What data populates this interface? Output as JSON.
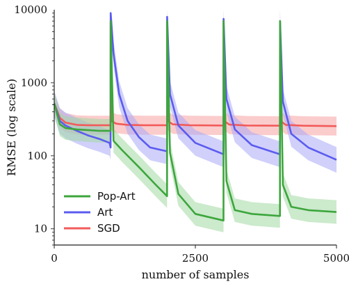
{
  "chart_data": {
    "type": "line",
    "xlabel": "number of samples",
    "ylabel": "RMSE (log scale)",
    "xlim": [
      0,
      5000
    ],
    "ylim": [
      6,
      10000
    ],
    "yscale": "log",
    "grid": false,
    "legend_position": "bottom-left",
    "x_ticks": [
      {
        "value": 0,
        "label": "0"
      },
      {
        "value": 2500,
        "label": "2500"
      },
      {
        "value": 5000,
        "label": "5000"
      }
    ],
    "y_ticks": [
      {
        "value": 10,
        "label": "10"
      },
      {
        "value": 100,
        "label": "100"
      },
      {
        "value": 1000,
        "label": "1000"
      },
      {
        "value": 10000,
        "label": "10000"
      }
    ],
    "series": [
      {
        "name": "SGD",
        "color": "#f25a5a",
        "band_color": "#f7a3a3",
        "x": [
          0,
          100,
          200,
          400,
          600,
          800,
          999,
          1000,
          1010,
          1100,
          1300,
          1600,
          1999,
          2000,
          2010,
          2100,
          2400,
          2999,
          3000,
          3010,
          3100,
          3400,
          3999,
          4000,
          4010,
          4100,
          4400,
          5000
        ],
        "y": [
          520,
          330,
          285,
          265,
          262,
          262,
          262,
          7000,
          300,
          275,
          265,
          262,
          262,
          7000,
          300,
          270,
          262,
          260,
          7000,
          300,
          268,
          260,
          258,
          7000,
          300,
          265,
          258,
          255
        ],
        "band_ratio": 1.35
      },
      {
        "name": "Art",
        "color": "#5b5bf0",
        "band_color": "#a9a9f7",
        "x": [
          0,
          100,
          200,
          400,
          600,
          800,
          980,
          999,
          1000,
          1050,
          1150,
          1300,
          1500,
          1700,
          1999,
          2000,
          2050,
          2200,
          2500,
          2999,
          3000,
          3050,
          3200,
          3500,
          3999,
          4000,
          4050,
          4200,
          4500,
          5000
        ],
        "y": [
          520,
          300,
          260,
          220,
          190,
          170,
          150,
          130,
          9000,
          2500,
          700,
          300,
          180,
          130,
          115,
          8000,
          700,
          260,
          150,
          105,
          7500,
          600,
          230,
          140,
          105,
          7000,
          550,
          200,
          130,
          88
        ],
        "band_ratio": 1.5
      },
      {
        "name": "Pop-Art",
        "color": "#3ca63c",
        "band_color": "#a3d9a3",
        "x": [
          0,
          100,
          200,
          400,
          600,
          800,
          999,
          1000,
          1050,
          1200,
          1500,
          1800,
          1999,
          2000,
          2050,
          2200,
          2500,
          2999,
          3000,
          3050,
          3200,
          3500,
          3999,
          4000,
          4050,
          4200,
          4500,
          5000
        ],
        "y": [
          520,
          270,
          240,
          230,
          225,
          220,
          220,
          7000,
          160,
          120,
          70,
          40,
          28,
          7000,
          110,
          30,
          16,
          13,
          7000,
          45,
          18,
          16,
          15,
          7000,
          40,
          20,
          18,
          17
        ],
        "band_ratio": 1.45
      }
    ],
    "legend": [
      "Pop-Art",
      "Art",
      "SGD"
    ]
  }
}
